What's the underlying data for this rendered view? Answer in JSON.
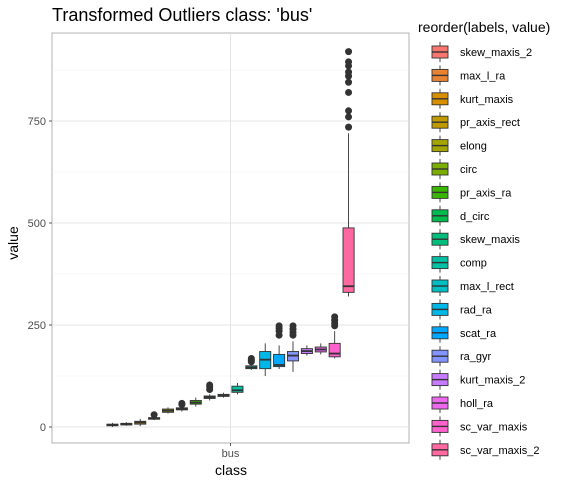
{
  "chart_data": {
    "type": "boxplot",
    "title": "Transformed Outliers class: 'bus'",
    "xlabel": "class",
    "ylabel": "value",
    "categories": [
      "bus"
    ],
    "ylim": [
      -40,
      960
    ],
    "yticks": [
      0,
      250,
      500,
      750
    ],
    "grid": true,
    "legend": {
      "title": "reorder(labels, value)",
      "position": "right"
    },
    "series": [
      {
        "name": "skew_maxis_2",
        "color": "#F8766D",
        "min": 0,
        "q1": 3,
        "median": 5,
        "q3": 7,
        "max": 10,
        "outliers": []
      },
      {
        "name": "max_l_ra",
        "color": "#EA8331",
        "min": 3,
        "q1": 5,
        "median": 7,
        "q3": 9,
        "max": 12,
        "outliers": []
      },
      {
        "name": "kurt_maxis",
        "color": "#D89000",
        "min": 2,
        "q1": 7,
        "median": 11,
        "q3": 14,
        "max": 20,
        "outliers": []
      },
      {
        "name": "pr_axis_rect",
        "color": "#C09B00",
        "min": 17,
        "q1": 19,
        "median": 21,
        "q3": 23,
        "max": 26,
        "outliers": [
          30
        ]
      },
      {
        "name": "elong",
        "color": "#A3A500",
        "min": 33,
        "q1": 36,
        "median": 40,
        "q3": 44,
        "max": 48,
        "outliers": []
      },
      {
        "name": "circ",
        "color": "#7CAE00",
        "min": 38,
        "q1": 42,
        "median": 45,
        "q3": 47,
        "max": 50,
        "outliers": [
          55,
          58
        ]
      },
      {
        "name": "pr_axis_ra",
        "color": "#39B600",
        "min": 50,
        "q1": 56,
        "median": 60,
        "q3": 65,
        "max": 72,
        "outliers": []
      },
      {
        "name": "d_circ",
        "color": "#00BB4E",
        "min": 65,
        "q1": 70,
        "median": 73,
        "q3": 76,
        "max": 80,
        "outliers": [
          92,
          98,
          103
        ]
      },
      {
        "name": "skew_maxis",
        "color": "#00BF7D",
        "min": 72,
        "q1": 75,
        "median": 77,
        "q3": 80,
        "max": 84,
        "outliers": []
      },
      {
        "name": "comp",
        "color": "#00C1A3",
        "min": 80,
        "q1": 85,
        "median": 90,
        "q3": 100,
        "max": 108,
        "outliers": []
      },
      {
        "name": "max_l_rect",
        "color": "#00BFC4",
        "min": 140,
        "q1": 143,
        "median": 146,
        "q3": 150,
        "max": 156,
        "outliers": [
          160,
          164,
          168
        ]
      },
      {
        "name": "rad_ra",
        "color": "#00B8E7",
        "min": 125,
        "q1": 143,
        "median": 165,
        "q3": 185,
        "max": 205,
        "outliers": []
      },
      {
        "name": "scat_ra",
        "color": "#00A9FF",
        "min": 142,
        "q1": 148,
        "median": 152,
        "q3": 178,
        "max": 200,
        "outliers": [
          225,
          235,
          242,
          248
        ]
      },
      {
        "name": "ra_gyr",
        "color": "#8494FF",
        "min": 135,
        "q1": 162,
        "median": 175,
        "q3": 185,
        "max": 210,
        "outliers": [
          225,
          232,
          240,
          248
        ]
      },
      {
        "name": "kurt_maxis_2",
        "color": "#C77CFF",
        "min": 175,
        "q1": 180,
        "median": 186,
        "q3": 192,
        "max": 200,
        "outliers": []
      },
      {
        "name": "holl_ra",
        "color": "#ED68ED",
        "min": 178,
        "q1": 184,
        "median": 190,
        "q3": 196,
        "max": 205,
        "outliers": []
      },
      {
        "name": "sc_var_maxis",
        "color": "#FF61CC",
        "min": 168,
        "q1": 172,
        "median": 180,
        "q3": 205,
        "max": 235,
        "outliers": [
          248,
          255,
          262,
          270
        ]
      },
      {
        "name": "sc_var_maxis_2",
        "color": "#FF68A1",
        "min": 320,
        "q1": 330,
        "median": 345,
        "q3": 488,
        "max": 720,
        "outliers": [
          735,
          760,
          775,
          820,
          845,
          860,
          870,
          885,
          895,
          920
        ]
      }
    ]
  }
}
